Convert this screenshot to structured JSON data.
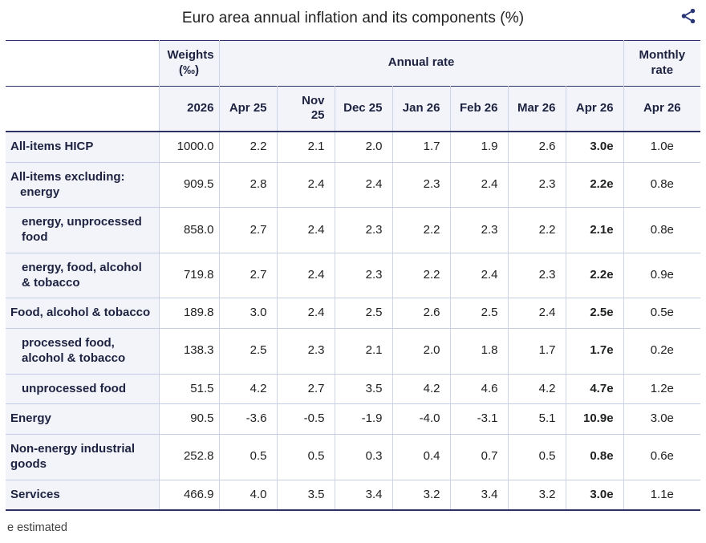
{
  "page": {
    "footnote": "e estimated"
  },
  "icons": {
    "share": "share-nodes"
  },
  "colors": {
    "border_dark": "#2c3261",
    "border_light": "#cdd4ea",
    "header_bg": "#f2f4fa",
    "row_label_bg": "#f2f4fa",
    "text_dark": "#1d2240",
    "share_icon": "#2a3575"
  },
  "chart_data": {
    "type": "table",
    "title": "Euro area annual inflation and its components (%)",
    "footnote": "e estimated",
    "header": {
      "weights_label": "Weights\n(‰)",
      "weights_year": "2026",
      "annual_rate_label": "Annual rate",
      "monthly_rate_label": "Monthly\nrate",
      "annual_columns": [
        "Apr 25",
        "Nov 25",
        "Dec 25",
        "Jan 26",
        "Feb 26",
        "Mar 26",
        "Apr 26"
      ],
      "monthly_column": "Apr 26"
    },
    "rows": [
      {
        "label": "All-items HICP",
        "indent": 0,
        "weight": "1000.0",
        "annual": [
          "2.2",
          "2.1",
          "2.0",
          "1.7",
          "1.9",
          "2.6",
          "3.0e"
        ],
        "monthly": "1.0e"
      },
      {
        "label": "All-items excluding:",
        "sub": "energy",
        "indent": 0,
        "weight": "909.5",
        "annual": [
          "2.8",
          "2.4",
          "2.4",
          "2.3",
          "2.4",
          "2.3",
          "2.2e"
        ],
        "monthly": "0.8e"
      },
      {
        "label": "energy, unprocessed food",
        "indent": 1,
        "weight": "858.0",
        "annual": [
          "2.7",
          "2.4",
          "2.3",
          "2.2",
          "2.3",
          "2.2",
          "2.1e"
        ],
        "monthly": "0.8e"
      },
      {
        "label": "energy, food, alcohol & tobacco",
        "indent": 1,
        "weight": "719.8",
        "annual": [
          "2.7",
          "2.4",
          "2.3",
          "2.2",
          "2.4",
          "2.3",
          "2.2e"
        ],
        "monthly": "0.9e"
      },
      {
        "label": "Food, alcohol & tobacco",
        "indent": 0,
        "weight": "189.8",
        "annual": [
          "3.0",
          "2.4",
          "2.5",
          "2.6",
          "2.5",
          "2.4",
          "2.5e"
        ],
        "monthly": "0.5e"
      },
      {
        "label": "processed food, alcohol & tobacco",
        "indent": 1,
        "weight": "138.3",
        "annual": [
          "2.5",
          "2.3",
          "2.1",
          "2.0",
          "1.8",
          "1.7",
          "1.7e"
        ],
        "monthly": "0.2e"
      },
      {
        "label": "unprocessed food",
        "indent": 1,
        "weight": "51.5",
        "annual": [
          "4.2",
          "2.7",
          "3.5",
          "4.2",
          "4.6",
          "4.2",
          "4.7e"
        ],
        "monthly": "1.2e"
      },
      {
        "label": "Energy",
        "indent": 0,
        "weight": "90.5",
        "annual": [
          "-3.6",
          "-0.5",
          "-1.9",
          "-4.0",
          "-3.1",
          "5.1",
          "10.9e"
        ],
        "monthly": "3.0e"
      },
      {
        "label": "Non-energy industrial goods",
        "indent": 0,
        "weight": "252.8",
        "annual": [
          "0.5",
          "0.5",
          "0.3",
          "0.4",
          "0.7",
          "0.5",
          "0.8e"
        ],
        "monthly": "0.6e"
      },
      {
        "label": "Services",
        "indent": 0,
        "weight": "466.9",
        "annual": [
          "4.0",
          "3.5",
          "3.4",
          "3.2",
          "3.4",
          "3.2",
          "3.0e"
        ],
        "monthly": "1.1e"
      }
    ]
  }
}
